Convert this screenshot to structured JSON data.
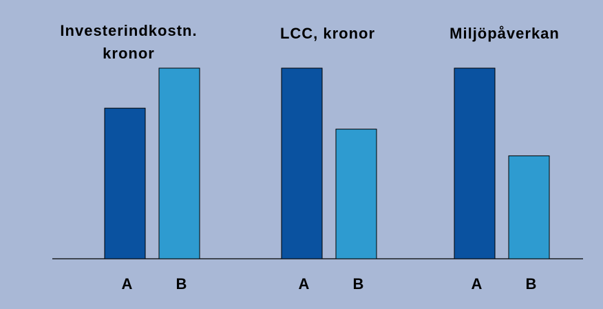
{
  "chart_data": [
    {
      "type": "bar",
      "title": [
        "Investerindkostn.",
        "kronor"
      ],
      "categories": [
        "A",
        "B"
      ],
      "values": [
        79,
        100
      ],
      "colors": [
        "#0a52a0",
        "#2e9bd0"
      ],
      "ylim": [
        0,
        100
      ]
    },
    {
      "type": "bar",
      "title": "LCC, kronor",
      "categories": [
        "A",
        "B"
      ],
      "values": [
        100,
        68
      ],
      "colors": [
        "#0a52a0",
        "#2e9bd0"
      ],
      "ylim": [
        0,
        100
      ]
    },
    {
      "type": "bar",
      "title": "Miljöpåverkan",
      "categories": [
        "A",
        "B"
      ],
      "values": [
        100,
        54
      ],
      "colors": [
        "#0a52a0",
        "#2e9bd0"
      ],
      "ylim": [
        0,
        100
      ]
    }
  ]
}
